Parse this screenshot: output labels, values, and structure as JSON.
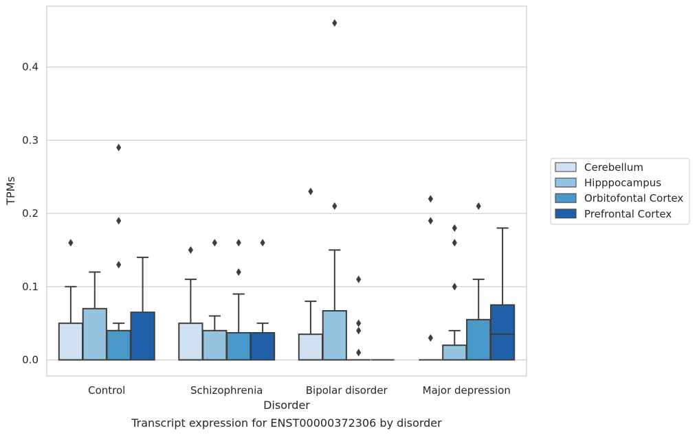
{
  "chart_data": {
    "type": "boxplot",
    "caption": "Transcript expression for ENST00000372306 by disorder",
    "xlabel": "Disorder",
    "ylabel": "TPMs",
    "ylim": [
      -0.022,
      0.483
    ],
    "yticks": [
      0.0,
      0.1,
      0.2,
      0.3,
      0.4
    ],
    "ytick_labels": [
      "0.0",
      "0.1",
      "0.2",
      "0.3",
      "0.4"
    ],
    "grid": true,
    "legend_position": "right",
    "categories": [
      "Control",
      "Schizophrenia",
      "Bipolar disorder",
      "Major depression"
    ],
    "series": [
      {
        "name": "Cerebellum",
        "color": "#d0e1f2",
        "boxes": [
          {
            "whislo": 0.0,
            "q1": 0.0,
            "med": 0.0,
            "q3": 0.05,
            "whishi": 0.1,
            "fliers": [
              0.16
            ]
          },
          {
            "whislo": 0.0,
            "q1": 0.0,
            "med": 0.0,
            "q3": 0.05,
            "whishi": 0.11,
            "fliers": [
              0.15
            ]
          },
          {
            "whislo": 0.0,
            "q1": 0.0,
            "med": 0.0,
            "q3": 0.035,
            "whishi": 0.08,
            "fliers": [
              0.23
            ]
          },
          {
            "whislo": 0.0,
            "q1": 0.0,
            "med": 0.0,
            "q3": 0.0,
            "whishi": 0.0,
            "fliers": [
              0.03,
              0.19,
              0.22
            ]
          }
        ]
      },
      {
        "name": "Hipppocampus",
        "color": "#94c4df",
        "boxes": [
          {
            "whislo": 0.0,
            "q1": 0.0,
            "med": 0.0,
            "q3": 0.07,
            "whishi": 0.12,
            "fliers": []
          },
          {
            "whislo": 0.0,
            "q1": 0.0,
            "med": 0.0,
            "q3": 0.04,
            "whishi": 0.06,
            "fliers": [
              0.16
            ]
          },
          {
            "whislo": 0.0,
            "q1": 0.0,
            "med": 0.0,
            "q3": 0.067,
            "whishi": 0.15,
            "fliers": [
              0.21,
              0.46
            ]
          },
          {
            "whislo": 0.0,
            "q1": 0.0,
            "med": 0.0,
            "q3": 0.02,
            "whishi": 0.04,
            "fliers": [
              0.1,
              0.16,
              0.18
            ]
          }
        ]
      },
      {
        "name": "Orbitofontal Cortex",
        "color": "#4a98c9",
        "boxes": [
          {
            "whislo": 0.0,
            "q1": 0.0,
            "med": 0.0,
            "q3": 0.04,
            "whishi": 0.05,
            "fliers": [
              0.13,
              0.19,
              0.29
            ]
          },
          {
            "whislo": 0.0,
            "q1": 0.0,
            "med": 0.0,
            "q3": 0.037,
            "whishi": 0.09,
            "fliers": [
              0.12,
              0.16
            ]
          },
          {
            "whislo": 0.0,
            "q1": 0.0,
            "med": 0.0,
            "q3": 0.0,
            "whishi": 0.0,
            "fliers": [
              0.01,
              0.04,
              0.05,
              0.11
            ]
          },
          {
            "whislo": 0.0,
            "q1": 0.0,
            "med": 0.0,
            "q3": 0.055,
            "whishi": 0.11,
            "fliers": [
              0.21
            ]
          }
        ]
      },
      {
        "name": "Prefrontal Cortex",
        "color": "#2060a8",
        "boxes": [
          {
            "whislo": 0.0,
            "q1": 0.0,
            "med": 0.0,
            "q3": 0.065,
            "whishi": 0.14,
            "fliers": []
          },
          {
            "whislo": 0.0,
            "q1": 0.0,
            "med": 0.0,
            "q3": 0.037,
            "whishi": 0.05,
            "fliers": [
              0.16
            ]
          },
          {
            "whislo": 0.0,
            "q1": 0.0,
            "med": 0.0,
            "q3": 0.0,
            "whishi": 0.0,
            "fliers": []
          },
          {
            "whislo": 0.0,
            "q1": 0.0,
            "med": 0.035,
            "q3": 0.075,
            "whishi": 0.18,
            "fliers": []
          }
        ]
      }
    ]
  }
}
